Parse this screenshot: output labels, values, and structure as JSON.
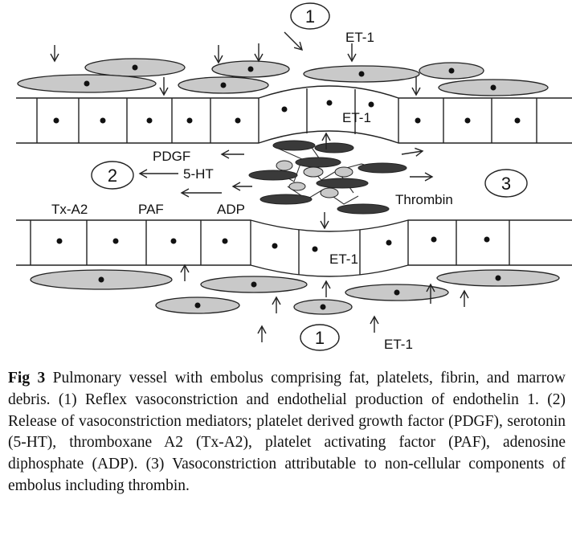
{
  "diagram": {
    "circle_labels": {
      "top": "1",
      "left": "2",
      "right": "3",
      "bottom": "1"
    },
    "labels": {
      "et1_top": "ET-1",
      "et1_upper_wall": "ET-1",
      "et1_lower_wall": "ET-1",
      "et1_bottom": "ET-1",
      "pdgf": "PDGF",
      "ht5": "5-HT",
      "txa2": "Tx-A2",
      "paf": "PAF",
      "adp": "ADP",
      "thrombin": "Thrombin"
    },
    "colors": {
      "cell_fill": "#c8c8c8",
      "platelet_fill": "#3a3a3a",
      "fat_fill": "#c9c9c9",
      "stroke": "#222222"
    }
  },
  "caption": {
    "label": "Fig 3",
    "text": "Pulmonary vessel with embolus comprising fat, platelets, fibrin, and marrow debris. (1) Reflex vasoconstriction and endothelial production of endothelin 1. (2) Release of vasoconstriction mediators; platelet derived growth factor (PDGF), serotonin (5-HT), thromboxane A2 (Tx-A2), platelet activating factor (PAF), adenosine diphosphate (ADP). (3) Vasoconstriction attributable to non-cellular components of embolus including thrombin."
  }
}
